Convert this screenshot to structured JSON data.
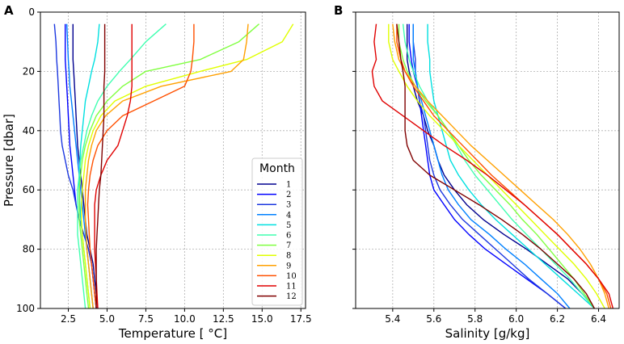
{
  "chart_data": [
    {
      "type": "line",
      "panel_label": "A",
      "xlabel": "Temperature [$^\\circ$C]",
      "xlabel_display": "Temperature [ °C]",
      "ylabel": "Pressure [dbar]",
      "xlim": [
        0.7,
        17.8
      ],
      "ylim": [
        100,
        0
      ],
      "xticks": [
        "2.5",
        "5.0",
        "7.5",
        "10.0",
        "12.5",
        "15.0",
        "17.5"
      ],
      "xtick_values": [
        2.5,
        5.0,
        7.5,
        10.0,
        12.5,
        15.0,
        17.5
      ],
      "yticks": [
        "0",
        "20",
        "40",
        "60",
        "80",
        "100"
      ],
      "ytick_values": [
        0,
        20,
        40,
        60,
        80,
        100
      ],
      "grid": true,
      "legend": {
        "title": "Month",
        "location": "lower-right",
        "entries": [
          "1",
          "2",
          "3",
          "4",
          "5",
          "6",
          "7",
          "8",
          "9",
          "10",
          "11",
          "12"
        ]
      },
      "pressure": [
        4,
        10,
        16,
        20,
        25,
        30,
        35,
        40,
        45,
        50,
        55,
        60,
        65,
        70,
        75,
        80,
        85,
        90,
        95,
        100
      ],
      "series": [
        {
          "name": "1",
          "color": "#00008f",
          "values": [
            2.8,
            2.8,
            2.8,
            2.85,
            2.9,
            2.95,
            3.0,
            3.05,
            3.1,
            3.2,
            3.3,
            3.4,
            3.5,
            3.6,
            3.7,
            3.9,
            4.1,
            4.2,
            4.3,
            4.4
          ]
        },
        {
          "name": "2",
          "color": "#0000ff",
          "values": [
            2.3,
            2.3,
            2.3,
            2.35,
            2.4,
            2.45,
            2.5,
            2.55,
            2.6,
            2.7,
            2.8,
            2.9,
            3.0,
            3.2,
            3.5,
            3.8,
            4.0,
            4.1,
            4.2,
            4.3
          ]
        },
        {
          "name": "3",
          "color": "#1c38e0",
          "values": [
            1.6,
            1.7,
            1.75,
            1.8,
            1.85,
            1.9,
            1.95,
            2.0,
            2.1,
            2.3,
            2.5,
            2.8,
            3.0,
            3.2,
            3.5,
            3.8,
            4.0,
            4.1,
            4.2,
            4.3
          ]
        },
        {
          "name": "4",
          "color": "#0080ff",
          "values": [
            2.4,
            2.45,
            2.5,
            2.55,
            2.6,
            2.7,
            2.8,
            2.9,
            3.0,
            3.1,
            3.2,
            3.3,
            3.4,
            3.5,
            3.6,
            3.7,
            3.8,
            3.9,
            4.0,
            4.1
          ]
        },
        {
          "name": "5",
          "color": "#00e0e0",
          "values": [
            4.5,
            4.4,
            4.2,
            4.0,
            3.8,
            3.6,
            3.5,
            3.4,
            3.3,
            3.25,
            3.2,
            3.2,
            3.25,
            3.3,
            3.4,
            3.5,
            3.6,
            3.7,
            3.8,
            3.9
          ]
        },
        {
          "name": "6",
          "color": "#40ffb0",
          "values": [
            8.8,
            7.5,
            6.5,
            5.8,
            5.0,
            4.4,
            4.0,
            3.7,
            3.5,
            3.3,
            3.2,
            3.1,
            3.1,
            3.1,
            3.1,
            3.2,
            3.3,
            3.4,
            3.5,
            3.6
          ]
        },
        {
          "name": "7",
          "color": "#80ff40",
          "values": [
            14.8,
            13.5,
            11.0,
            7.5,
            6.0,
            5.0,
            4.3,
            3.9,
            3.6,
            3.4,
            3.3,
            3.2,
            3.2,
            3.2,
            3.3,
            3.4,
            3.5,
            3.6,
            3.7,
            3.8
          ]
        },
        {
          "name": "8",
          "color": "#e0ff00",
          "values": [
            17.0,
            16.3,
            14.0,
            11.0,
            7.5,
            5.5,
            4.6,
            4.1,
            3.8,
            3.6,
            3.5,
            3.4,
            3.35,
            3.35,
            3.4,
            3.5,
            3.6,
            3.7,
            3.8,
            3.9
          ]
        },
        {
          "name": "9",
          "color": "#ffa000",
          "values": [
            14.1,
            14.0,
            13.8,
            13.0,
            8.5,
            6.0,
            4.9,
            4.3,
            4.0,
            3.8,
            3.7,
            3.6,
            3.6,
            3.6,
            3.65,
            3.7,
            3.8,
            3.9,
            4.0,
            4.1
          ]
        },
        {
          "name": "10",
          "color": "#ff5000",
          "values": [
            10.6,
            10.6,
            10.5,
            10.4,
            10.0,
            8.0,
            6.0,
            5.0,
            4.4,
            4.1,
            3.9,
            3.8,
            3.75,
            3.8,
            3.85,
            3.9,
            4.0,
            4.1,
            4.2,
            4.3
          ]
        },
        {
          "name": "11",
          "color": "#e00000",
          "values": [
            6.6,
            6.6,
            6.6,
            6.6,
            6.6,
            6.5,
            6.3,
            6.0,
            5.7,
            5.0,
            4.6,
            4.3,
            4.2,
            4.2,
            4.2,
            4.2,
            4.25,
            4.3,
            4.35,
            4.4
          ]
        },
        {
          "name": "12",
          "color": "#800000",
          "values": [
            4.85,
            4.85,
            4.85,
            4.85,
            4.8,
            4.8,
            4.8,
            4.75,
            4.7,
            4.65,
            4.6,
            4.5,
            4.45,
            4.4,
            4.35,
            4.3,
            4.3,
            4.3,
            4.3,
            4.3
          ]
        }
      ]
    },
    {
      "type": "line",
      "panel_label": "B",
      "xlabel": "Salinity [g/kg]",
      "ylabel": "Pressure [dbar]",
      "xlim": [
        5.22,
        6.5
      ],
      "ylim": [
        100,
        0
      ],
      "xticks": [
        "5.4",
        "5.6",
        "5.8",
        "6.0",
        "6.2",
        "6.4"
      ],
      "xtick_values": [
        5.4,
        5.6,
        5.8,
        6.0,
        6.2,
        6.4
      ],
      "yticks": [
        "0",
        "20",
        "40",
        "60",
        "80",
        "100"
      ],
      "ytick_values": [
        0,
        20,
        40,
        60,
        80,
        100
      ],
      "grid": true,
      "pressure": [
        4,
        10,
        16,
        20,
        25,
        30,
        35,
        40,
        45,
        50,
        55,
        60,
        65,
        70,
        75,
        80,
        85,
        90,
        95,
        100
      ],
      "series": [
        {
          "name": "1",
          "color": "#00008f",
          "values": [
            5.47,
            5.47,
            5.47,
            5.48,
            5.5,
            5.52,
            5.55,
            5.57,
            5.6,
            5.62,
            5.65,
            5.7,
            5.76,
            5.84,
            5.94,
            6.05,
            6.15,
            6.25,
            6.32,
            6.38
          ]
        },
        {
          "name": "2",
          "color": "#0000ff",
          "values": [
            5.48,
            5.48,
            5.49,
            5.5,
            5.52,
            5.53,
            5.54,
            5.55,
            5.56,
            5.57,
            5.58,
            5.6,
            5.65,
            5.7,
            5.77,
            5.85,
            5.95,
            6.05,
            6.15,
            6.24
          ]
        },
        {
          "name": "3",
          "color": "#1c38e0",
          "values": [
            5.5,
            5.5,
            5.51,
            5.51,
            5.52,
            5.53,
            5.55,
            5.56,
            5.57,
            5.58,
            5.6,
            5.63,
            5.68,
            5.74,
            5.82,
            5.9,
            5.98,
            6.06,
            6.15,
            6.24
          ]
        },
        {
          "name": "4",
          "color": "#0080ff",
          "values": [
            5.5,
            5.5,
            5.5,
            5.51,
            5.52,
            5.54,
            5.56,
            5.58,
            5.6,
            5.62,
            5.64,
            5.67,
            5.72,
            5.78,
            5.87,
            5.95,
            6.04,
            6.12,
            6.2,
            6.26
          ]
        },
        {
          "name": "5",
          "color": "#00e0e0",
          "values": [
            5.57,
            5.57,
            5.58,
            5.58,
            5.59,
            5.6,
            5.62,
            5.64,
            5.66,
            5.68,
            5.72,
            5.77,
            5.83,
            5.9,
            5.98,
            6.06,
            6.14,
            6.22,
            6.3,
            6.38
          ]
        },
        {
          "name": "6",
          "color": "#40ffb0",
          "values": [
            5.45,
            5.46,
            5.48,
            5.5,
            5.53,
            5.57,
            5.62,
            5.67,
            5.71,
            5.75,
            5.8,
            5.86,
            5.92,
            5.98,
            6.05,
            6.12,
            6.19,
            6.26,
            6.32,
            6.38
          ]
        },
        {
          "name": "7",
          "color": "#80ff40",
          "values": [
            5.43,
            5.43,
            5.45,
            5.47,
            5.51,
            5.56,
            5.62,
            5.67,
            5.72,
            5.77,
            5.83,
            5.9,
            5.97,
            6.03,
            6.1,
            6.16,
            6.22,
            6.28,
            6.33,
            6.38
          ]
        },
        {
          "name": "8",
          "color": "#e0ff00",
          "values": [
            5.38,
            5.38,
            5.4,
            5.43,
            5.47,
            5.52,
            5.58,
            5.65,
            5.72,
            5.79,
            5.86,
            5.93,
            6.0,
            6.07,
            6.14,
            6.21,
            6.28,
            6.34,
            6.39,
            6.43
          ]
        },
        {
          "name": "9",
          "color": "#ffa000",
          "values": [
            5.4,
            5.41,
            5.43,
            5.46,
            5.51,
            5.57,
            5.64,
            5.71,
            5.78,
            5.86,
            5.94,
            6.02,
            6.1,
            6.18,
            6.25,
            6.31,
            6.36,
            6.4,
            6.43,
            6.45
          ]
        },
        {
          "name": "10",
          "color": "#ff5000",
          "values": [
            5.42,
            5.42,
            5.44,
            5.46,
            5.5,
            5.55,
            5.6,
            5.67,
            5.74,
            5.81,
            5.88,
            5.96,
            6.04,
            6.12,
            6.2,
            6.27,
            6.34,
            6.4,
            6.44,
            6.46
          ]
        },
        {
          "name": "11",
          "color": "#e00000",
          "values": [
            5.32,
            5.31,
            5.32,
            5.3,
            5.31,
            5.35,
            5.45,
            5.55,
            5.65,
            5.76,
            5.86,
            5.95,
            6.04,
            6.12,
            6.2,
            6.27,
            6.34,
            6.4,
            6.45,
            6.47
          ]
        },
        {
          "name": "12",
          "color": "#800000",
          "values": [
            5.42,
            5.43,
            5.44,
            5.45,
            5.46,
            5.46,
            5.46,
            5.46,
            5.47,
            5.5,
            5.58,
            5.7,
            5.82,
            5.93,
            6.03,
            6.12,
            6.2,
            6.28,
            6.34,
            6.38
          ]
        }
      ]
    }
  ]
}
